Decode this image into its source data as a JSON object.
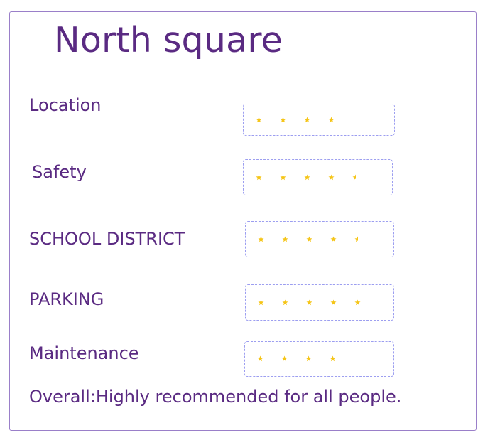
{
  "card": {
    "title": "North square",
    "ratings": [
      {
        "label": "Location",
        "stars": 4
      },
      {
        "label": "Safety",
        "stars": 4.5
      },
      {
        "label": "SCHOOL DISTRICT",
        "stars": 4.5
      },
      {
        "label": "PARKING",
        "stars": 5
      },
      {
        "label": "Maintenance",
        "stars": 4
      }
    ],
    "overall": "Overall:Highly recommended for all people."
  },
  "colors": {
    "text": "#5a2a82",
    "star": "#f5c518",
    "box_border": "#9c9ef0",
    "card_border": "#9a7fc9"
  },
  "icons": {
    "star": "star-icon",
    "half_star": "half-star-icon"
  }
}
